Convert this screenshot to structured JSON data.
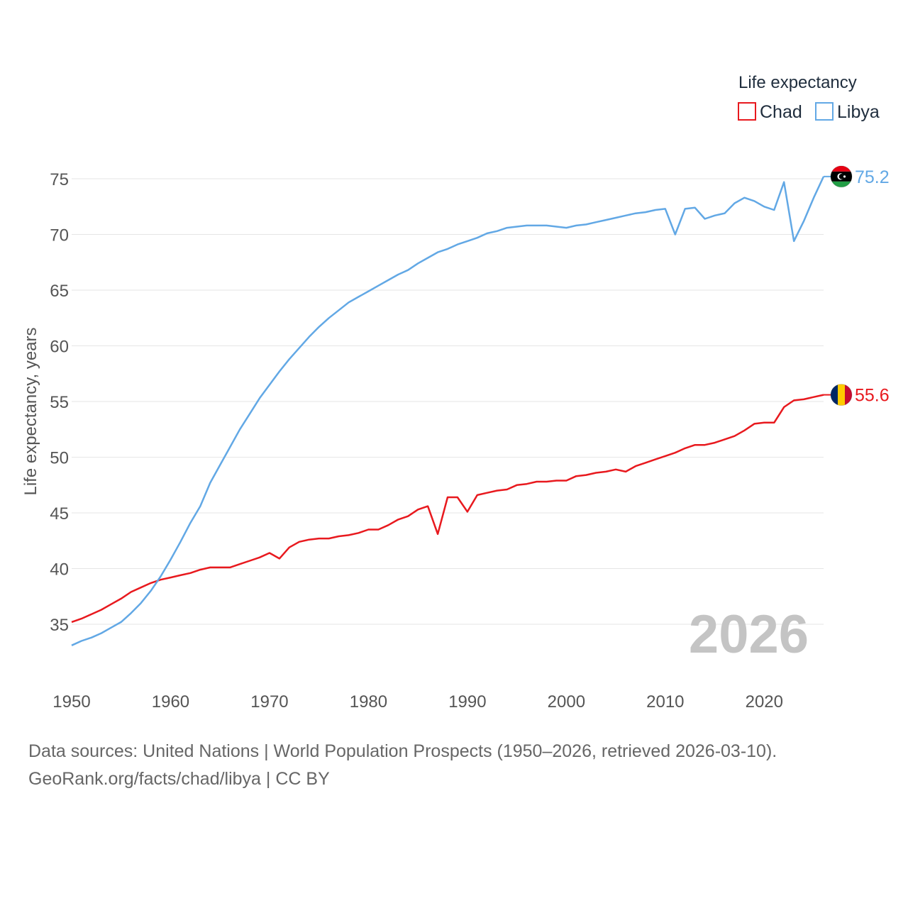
{
  "source_line1": "Data sources: United Nations | World Population Prospects (1950–2026, retrieved 2026-03-10).",
  "source_line2": "GeoRank.org/facts/chad/libya | CC BY",
  "chart_data": {
    "type": "line",
    "title": "",
    "legend_title": "Life expectancy",
    "legend_position": "top-right",
    "xlabel": "",
    "ylabel": "Life expectancy, years",
    "year_label": "2026",
    "xlim": [
      1950,
      2026
    ],
    "ylim": [
      32,
      77
    ],
    "x_ticks": [
      1950,
      1960,
      1970,
      1980,
      1990,
      2000,
      2010,
      2020
    ],
    "y_ticks": [
      35,
      40,
      45,
      50,
      55,
      60,
      65,
      70,
      75
    ],
    "grid": true,
    "x": [
      1950,
      1951,
      1952,
      1953,
      1954,
      1955,
      1956,
      1957,
      1958,
      1959,
      1960,
      1961,
      1962,
      1963,
      1964,
      1965,
      1966,
      1967,
      1968,
      1969,
      1970,
      1971,
      1972,
      1973,
      1974,
      1975,
      1976,
      1977,
      1978,
      1979,
      1980,
      1981,
      1982,
      1983,
      1984,
      1985,
      1986,
      1987,
      1988,
      1989,
      1990,
      1991,
      1992,
      1993,
      1994,
      1995,
      1996,
      1997,
      1998,
      1999,
      2000,
      2001,
      2002,
      2003,
      2004,
      2005,
      2006,
      2007,
      2008,
      2009,
      2010,
      2011,
      2012,
      2013,
      2014,
      2015,
      2016,
      2017,
      2018,
      2019,
      2020,
      2021,
      2022,
      2023,
      2024,
      2025,
      2026
    ],
    "series": [
      {
        "name": "Chad",
        "color": "#e8191e",
        "end_label": "55.6",
        "flag": "chad-flag-icon",
        "values": [
          35.2,
          35.5,
          35.9,
          36.3,
          36.8,
          37.3,
          37.9,
          38.3,
          38.7,
          39.0,
          39.2,
          39.4,
          39.6,
          39.9,
          40.1,
          40.1,
          40.1,
          40.4,
          40.7,
          41.0,
          41.4,
          40.9,
          41.9,
          42.4,
          42.6,
          42.7,
          42.7,
          42.9,
          43.0,
          43.2,
          43.5,
          43.5,
          43.9,
          44.4,
          44.7,
          45.3,
          45.6,
          43.1,
          46.4,
          46.4,
          45.1,
          46.6,
          46.8,
          47.0,
          47.1,
          47.5,
          47.6,
          47.8,
          47.8,
          47.9,
          47.9,
          48.3,
          48.4,
          48.6,
          48.7,
          48.9,
          48.7,
          49.2,
          49.5,
          49.8,
          50.1,
          50.4,
          50.8,
          51.1,
          51.1,
          51.3,
          51.6,
          51.9,
          52.4,
          53.0,
          53.1,
          53.1,
          54.5,
          55.1,
          55.2,
          55.4,
          55.6
        ]
      },
      {
        "name": "Libya",
        "color": "#62a8e5",
        "end_label": "75.2",
        "flag": "libya-flag-icon",
        "values": [
          33.1,
          33.5,
          33.8,
          34.2,
          34.7,
          35.2,
          36.0,
          36.9,
          38.0,
          39.3,
          40.8,
          42.4,
          44.1,
          45.6,
          47.7,
          49.3,
          50.9,
          52.5,
          53.9,
          55.3,
          56.5,
          57.7,
          58.8,
          59.8,
          60.8,
          61.7,
          62.5,
          63.2,
          63.9,
          64.4,
          64.9,
          65.4,
          65.9,
          66.4,
          66.8,
          67.4,
          67.9,
          68.4,
          68.7,
          69.1,
          69.4,
          69.7,
          70.1,
          70.3,
          70.6,
          70.7,
          70.8,
          70.8,
          70.8,
          70.7,
          70.6,
          70.8,
          70.9,
          71.1,
          71.3,
          71.5,
          71.7,
          71.9,
          72.0,
          72.2,
          72.3,
          70.0,
          72.3,
          72.4,
          71.4,
          71.7,
          71.9,
          72.8,
          73.3,
          73.0,
          72.5,
          72.2,
          74.7,
          69.4,
          71.2,
          73.3,
          75.2
        ]
      }
    ]
  }
}
